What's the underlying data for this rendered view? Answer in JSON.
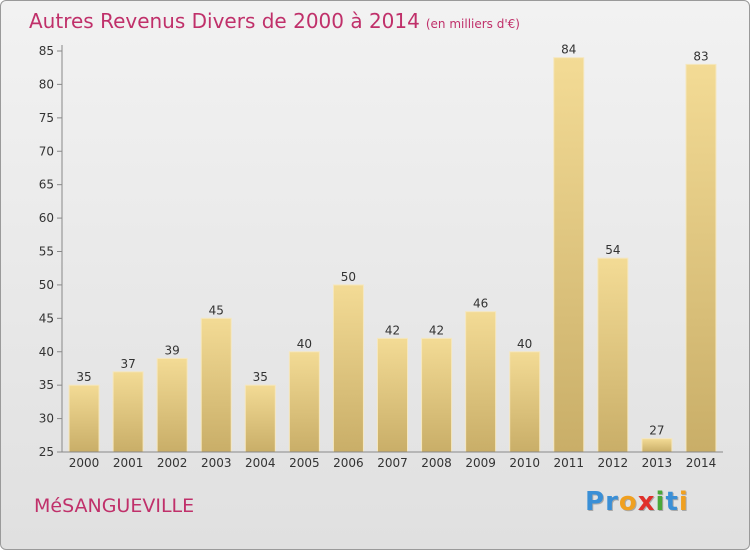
{
  "chart_data": {
    "type": "bar",
    "title": "Autres Revenus Divers de 2000 à 2014",
    "subtitle": "(en milliers d'€)",
    "categories": [
      "2000",
      "2001",
      "2002",
      "2003",
      "2004",
      "2005",
      "2006",
      "2007",
      "2008",
      "2009",
      "2010",
      "2011",
      "2012",
      "2013",
      "2014"
    ],
    "values": [
      35,
      37,
      39,
      45,
      35,
      40,
      50,
      42,
      42,
      46,
      40,
      84,
      54,
      27,
      83
    ],
    "ylim": [
      25,
      85
    ],
    "yticks": [
      25,
      30,
      35,
      40,
      45,
      50,
      55,
      60,
      65,
      70,
      75,
      80,
      85
    ],
    "grid": false,
    "bar_color": "#e8cc80"
  },
  "footer": {
    "place": "MéSANGUEVILLE",
    "logo_letters": [
      {
        "char": "P",
        "color": "#3a8fd6"
      },
      {
        "char": "r",
        "color": "#3a8fd6"
      },
      {
        "char": "o",
        "color": "#f0a020"
      },
      {
        "char": "x",
        "color": "#e0302a"
      },
      {
        "char": "i",
        "color": "#4aa838"
      },
      {
        "char": "t",
        "color": "#3a8fd6"
      },
      {
        "char": "i",
        "color": "#f0a020"
      }
    ]
  }
}
